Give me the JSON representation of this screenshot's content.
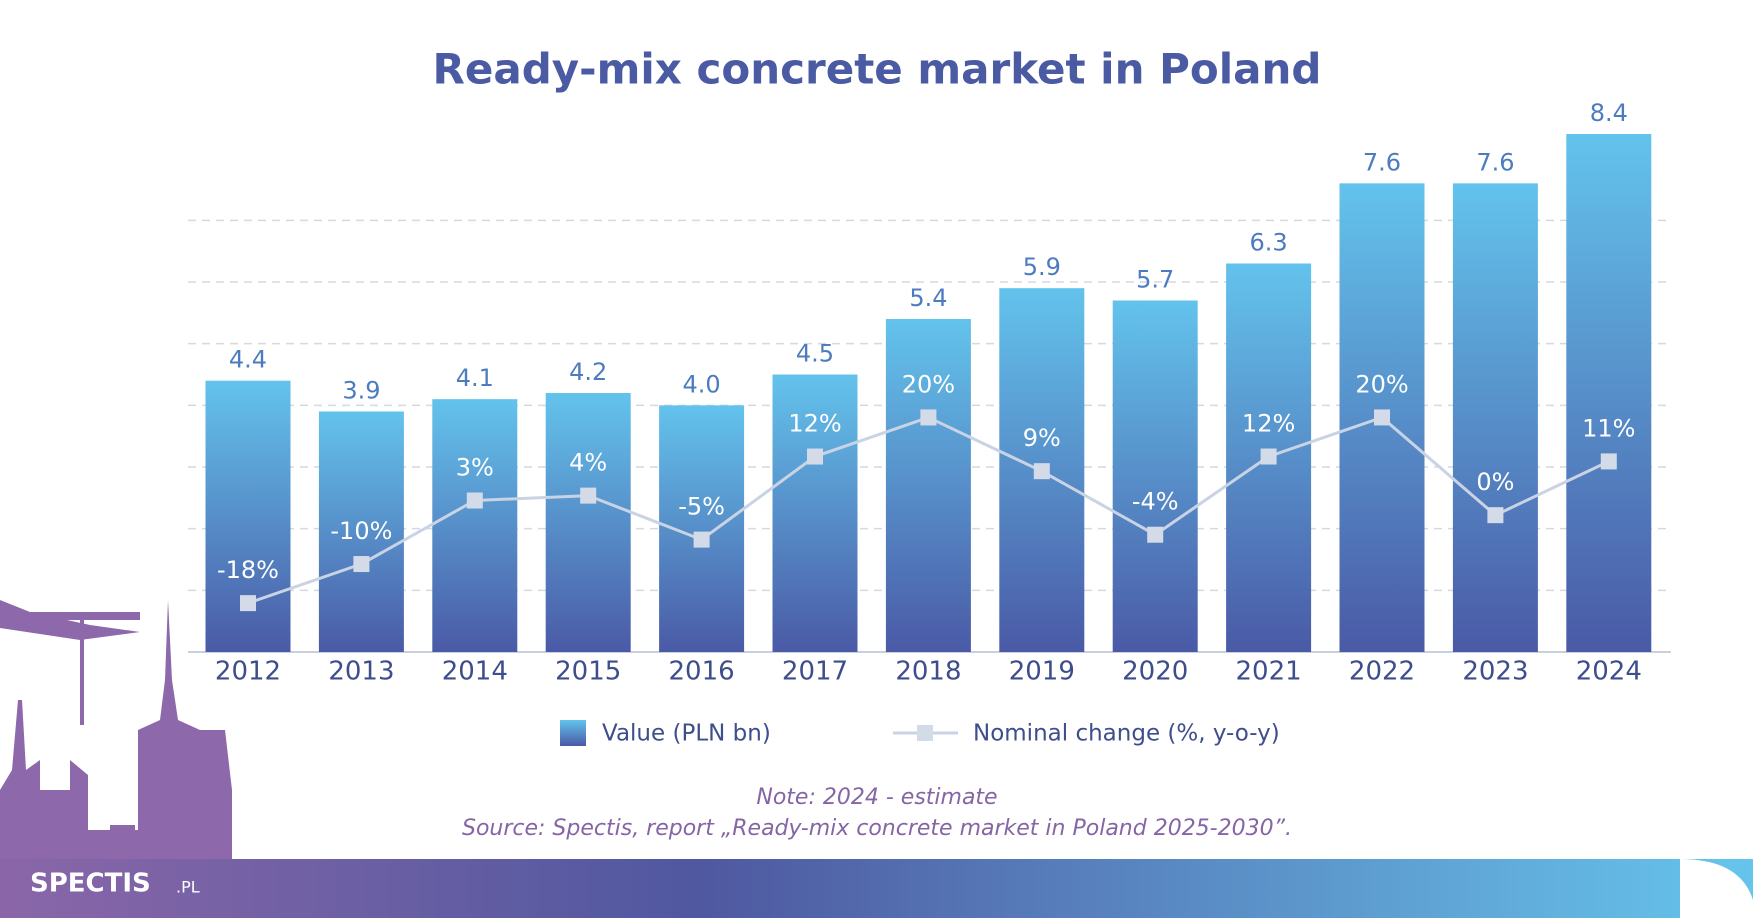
{
  "chart_data": {
    "type": "bar",
    "title": "Ready-mix concrete market in Poland",
    "categories": [
      "2012",
      "2013",
      "2014",
      "2015",
      "2016",
      "2017",
      "2018",
      "2019",
      "2020",
      "2021",
      "2022",
      "2023",
      "2024"
    ],
    "ylim": [
      0,
      8.4
    ],
    "yticks": [
      1,
      2,
      3,
      4,
      5,
      6,
      7
    ],
    "y2lim": [
      -28,
      78
    ],
    "grid": true,
    "series": [
      {
        "name": "Value (PLN bn)",
        "type": "bar",
        "color": "#5b8fd0",
        "values": [
          4.4,
          3.9,
          4.1,
          4.2,
          4.0,
          4.5,
          5.4,
          5.9,
          5.7,
          6.3,
          7.6,
          7.6,
          8.4
        ],
        "value_labels": [
          "4.4",
          "3.9",
          "4.1",
          "4.2",
          "4.0",
          "4.5",
          "5.4",
          "5.9",
          "5.7",
          "6.3",
          "7.6",
          "7.6",
          "8.4"
        ]
      },
      {
        "name": "Nominal change (%, y-o-y)",
        "type": "line",
        "axis": "y2",
        "color": "#c9d3e4",
        "values": [
          -18,
          -10,
          3,
          4,
          -5,
          12,
          20,
          9,
          -4,
          12,
          20,
          0,
          11
        ],
        "value_labels": [
          "-18%",
          "-10%",
          "3%",
          "4%",
          "-5%",
          "12%",
          "20%",
          "9%",
          "-4%",
          "12%",
          "20%",
          "0%",
          "11%"
        ]
      }
    ],
    "note": "Note: 2024 - estimate",
    "source": "Source: Spectis, report „Ready-mix concrete market in Poland 2025-2030”.",
    "logo": "SPECTIS",
    "logo_suffix": ".PL"
  }
}
